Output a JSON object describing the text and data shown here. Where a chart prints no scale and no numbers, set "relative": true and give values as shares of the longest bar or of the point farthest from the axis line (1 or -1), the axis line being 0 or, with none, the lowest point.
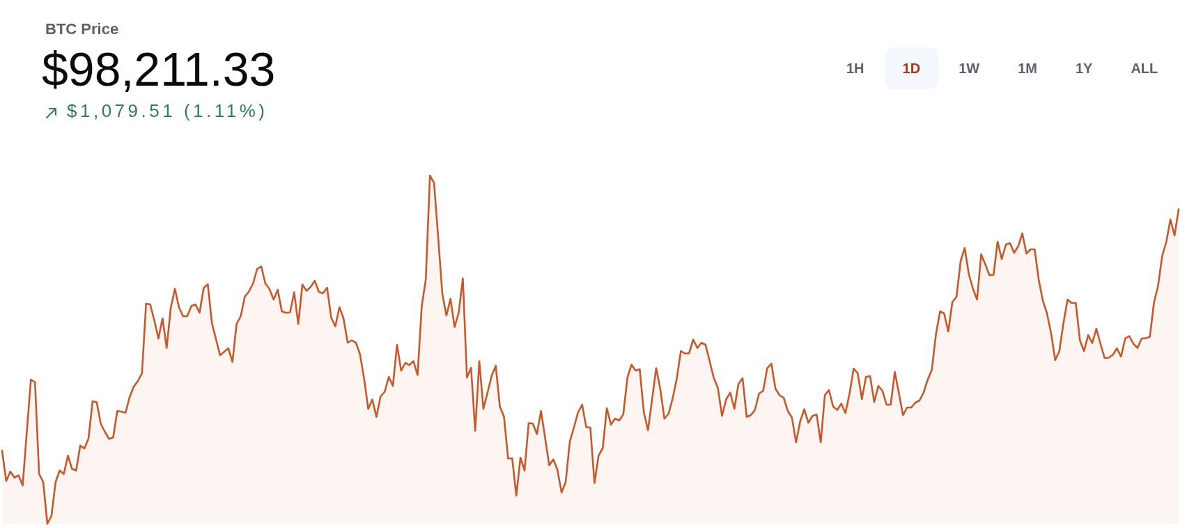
{
  "chart_data": {
    "type": "area",
    "title": "BTC Price",
    "subtitle": "$98,211.33",
    "annotations": [
      "$1,079.51 (1.11%)",
      "1H",
      "1D",
      "1W",
      "1M",
      "1Y",
      "ALL"
    ],
    "relative": true,
    "categories": [
      null,
      null,
      null,
      null,
      null,
      null,
      null,
      null,
      null,
      null,
      null,
      null,
      null,
      null,
      null,
      null,
      null,
      null,
      null,
      null,
      null,
      null,
      null,
      null,
      null,
      null,
      null,
      null,
      null,
      null,
      null,
      null,
      null,
      null,
      null,
      null,
      null,
      null,
      null,
      null,
      null,
      null,
      null,
      null,
      null,
      null,
      null,
      null,
      null,
      null,
      null,
      null,
      null,
      null,
      null,
      null,
      null,
      null,
      null,
      null,
      null,
      null,
      null,
      null,
      null,
      null,
      null,
      null,
      null,
      null,
      null,
      null,
      null,
      null,
      null,
      null,
      null,
      null,
      null,
      null,
      null,
      null,
      null,
      null,
      null,
      null,
      null,
      null,
      null,
      null,
      null,
      null,
      null,
      null,
      null,
      null,
      null,
      null,
      null,
      null,
      null,
      null,
      null,
      null,
      null,
      null,
      null,
      null,
      null,
      null,
      null,
      null,
      null,
      null,
      null,
      null,
      null,
      null,
      null,
      null,
      null,
      null,
      null,
      null,
      null,
      null,
      null,
      null,
      null,
      null,
      null,
      null,
      null,
      null,
      null,
      null,
      null,
      null,
      null,
      null,
      null,
      null,
      null,
      null,
      null,
      null,
      null,
      null,
      null,
      null,
      null,
      null,
      null,
      null,
      null,
      null,
      null,
      null,
      null,
      null,
      null,
      null,
      null,
      null,
      null,
      null,
      null,
      null,
      null,
      null,
      null,
      null,
      null,
      null,
      null,
      null,
      null,
      null,
      null,
      null,
      null,
      null,
      null,
      null,
      null,
      null,
      null,
      null,
      null,
      null,
      null,
      null,
      null,
      null,
      null,
      null,
      null,
      null,
      null,
      null,
      null,
      null,
      null,
      null,
      null,
      null,
      null,
      null,
      null,
      null,
      null,
      null,
      null,
      null,
      null,
      null,
      null,
      null,
      null,
      null,
      null,
      null,
      null,
      null,
      null,
      null,
      null,
      null,
      null,
      null,
      null,
      null,
      null,
      null,
      null,
      null,
      null,
      null,
      null,
      null,
      null,
      null,
      null,
      null,
      null,
      null,
      null,
      null,
      null,
      null,
      null,
      null,
      null,
      null,
      null,
      null,
      null,
      null,
      null,
      null,
      null,
      null,
      null,
      null,
      null,
      null,
      null,
      null,
      null,
      null,
      null,
      null,
      null,
      null,
      null,
      null,
      null,
      null,
      null,
      null,
      null,
      null,
      null,
      null,
      null,
      null,
      null
    ],
    "series": [
      {
        "color": "#c8582a",
        "values": [
          0.21,
          0.123,
          0.15,
          0.133,
          0.139,
          0.11,
          0.264,
          0.414,
          0.407,
          0.143,
          0.12,
          0,
          0.023,
          0.12,
          0.153,
          0.143,
          0.196,
          0.158,
          0.153,
          0.225,
          0.216,
          0.245,
          0.352,
          0.349,
          0.287,
          0.264,
          0.244,
          0.248,
          0.324,
          0.322,
          0.319,
          0.364,
          0.394,
          0.41,
          0.432,
          0.632,
          0.63,
          0.584,
          0.532,
          0.59,
          0.505,
          0.62,
          0.675,
          0.622,
          0.596,
          0.596,
          0.625,
          0.63,
          0.606,
          0.677,
          0.688,
          0.577,
          0.53,
          0.484,
          0.494,
          0.504,
          0.465,
          0.574,
          0.596,
          0.652,
          0.667,
          0.69,
          0.732,
          0.739,
          0.69,
          0.674,
          0.644,
          0.672,
          0.61,
          0.606,
          0.607,
          0.665,
          0.574,
          0.687,
          0.669,
          0.68,
          0.698,
          0.666,
          0.662,
          0.678,
          0.592,
          0.567,
          0.622,
          0.59,
          0.52,
          0.527,
          0.52,
          0.487,
          0.417,
          0.33,
          0.357,
          0.307,
          0.366,
          0.379,
          0.422,
          0.396,
          0.514,
          0.44,
          0.462,
          0.456,
          0.467,
          0.427,
          0.624,
          0.702,
          1,
          0.979,
          0.824,
          0.662,
          0.598,
          0.646,
          0.565,
          0.607,
          0.705,
          0.42,
          0.448,
          0.267,
          0.467,
          0.33,
          0.377,
          0.425,
          0.454,
          0.337,
          0.308,
          0.188,
          0.188,
          0.081,
          0.19,
          0.153,
          0.289,
          0.288,
          0.258,
          0.324,
          0.247,
          0.168,
          0.185,
          0.155,
          0.09,
          0.12,
          0.236,
          0.277,
          0.32,
          0.342,
          0.278,
          0.276,
          0.117,
          0.196,
          0.217,
          0.332,
          0.285,
          0.302,
          0.297,
          0.314,
          0.42,
          0.457,
          0.44,
          0.444,
          0.32,
          0.269,
          0.357,
          0.447,
          0.387,
          0.302,
          0.316,
          0.36,
          0.417,
          0.496,
          0.489,
          0.49,
          0.529,
          0.505,
          0.52,
          0.514,
          0.467,
          0.419,
          0.39,
          0.31,
          0.357,
          0.377,
          0.33,
          0.402,
          0.418,
          0.307,
          0.312,
          0.327,
          0.374,
          0.382,
          0.447,
          0.46,
          0.388,
          0.369,
          0.362,
          0.324,
          0.305,
          0.234,
          0.294,
          0.329,
          0.29,
          0.31,
          0.314,
          0.234,
          0.37,
          0.384,
          0.337,
          0.327,
          0.345,
          0.318,
          0.374,
          0.446,
          0.432,
          0.358,
          0.422,
          0.424,
          0.35,
          0.396,
          0.382,
          0.342,
          0.342,
          0.436,
          0.375,
          0.312,
          0.334,
          0.334,
          0.348,
          0.354,
          0.377,
          0.414,
          0.442,
          0.544,
          0.61,
          0.604,
          0.552,
          0.637,
          0.652,
          0.754,
          0.792,
          0.717,
          0.675,
          0.644,
          0.774,
          0.745,
          0.714,
          0.715,
          0.81,
          0.76,
          0.802,
          0.806,
          0.778,
          0.797,
          0.834,
          0.776,
          0.788,
          0.788,
          0.7,
          0.64,
          0.604,
          0.547,
          0.47,
          0.496,
          0.577,
          0.644,
          0.634,
          0.634,
          0.527,
          0.496,
          0.542,
          0.519,
          0.56,
          0.517,
          0.476,
          0.477,
          0.485,
          0.504,
          0.48,
          0.532,
          0.539,
          0.517,
          0.505,
          0.532,
          0.533,
          0.537,
          0.635,
          0.684,
          0.769,
          0.81,
          0.874,
          0.828,
          0.903
        ]
      }
    ]
  }
}
